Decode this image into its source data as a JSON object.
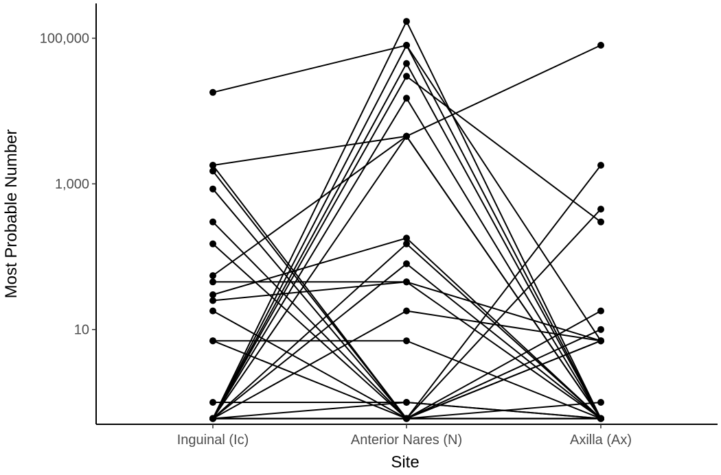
{
  "chart_data": {
    "type": "line",
    "xlabel": "Site",
    "ylabel": "Most Probable Number",
    "y_scale": "log",
    "ylim": [
      0.5,
      300000
    ],
    "grid": false,
    "categories": [
      "Inguinal (Ic)",
      "Anterior Nares (N)",
      "Axilla (Ax)"
    ],
    "yticks": [
      {
        "value": 10,
        "label": "10"
      },
      {
        "value": 1000,
        "label": "1,000"
      },
      {
        "value": 100000,
        "label": "100,000"
      }
    ],
    "series": [
      {
        "values": [
          18000,
          80000,
          0.6
        ]
      },
      {
        "values": [
          1800,
          4500,
          80000
        ]
      },
      {
        "values": [
          1800,
          0.6,
          7
        ]
      },
      {
        "values": [
          1500,
          0.6,
          0.6
        ]
      },
      {
        "values": [
          850,
          0.6,
          0.6
        ]
      },
      {
        "values": [
          300,
          0.6,
          0.6
        ]
      },
      {
        "values": [
          150,
          0.6,
          10
        ]
      },
      {
        "values": [
          55,
          4500,
          0.6
        ]
      },
      {
        "values": [
          45,
          45,
          0.6
        ]
      },
      {
        "values": [
          30,
          180,
          0.6
        ]
      },
      {
        "values": [
          25,
          45,
          7
        ]
      },
      {
        "values": [
          18,
          0.6,
          0.6
        ]
      },
      {
        "values": [
          7,
          7,
          0.6
        ]
      },
      {
        "values": [
          7,
          0.6,
          0.6
        ]
      },
      {
        "values": [
          1,
          1,
          0.6
        ]
      },
      {
        "values": [
          0.6,
          170000,
          0.6
        ]
      },
      {
        "values": [
          0.6,
          80000,
          7
        ]
      },
      {
        "values": [
          0.6,
          45000,
          0.6
        ]
      },
      {
        "values": [
          0.6,
          30000,
          300
        ]
      },
      {
        "values": [
          0.6,
          15000,
          0.6
        ]
      },
      {
        "values": [
          0.6,
          4500,
          0.6
        ]
      },
      {
        "values": [
          0.6,
          150,
          0.6
        ]
      },
      {
        "values": [
          0.6,
          80,
          0.6
        ]
      },
      {
        "values": [
          0.6,
          18,
          7
        ]
      },
      {
        "values": [
          0.6,
          1,
          0.6
        ]
      },
      {
        "values": [
          0.6,
          0.6,
          1800
        ]
      },
      {
        "values": [
          0.6,
          0.6,
          450
        ]
      },
      {
        "values": [
          0.6,
          0.6,
          18
        ]
      },
      {
        "values": [
          0.6,
          0.6,
          7
        ]
      },
      {
        "values": [
          0.6,
          0.6,
          1
        ]
      },
      {
        "values": [
          0.6,
          0.6,
          0.6
        ]
      }
    ]
  }
}
